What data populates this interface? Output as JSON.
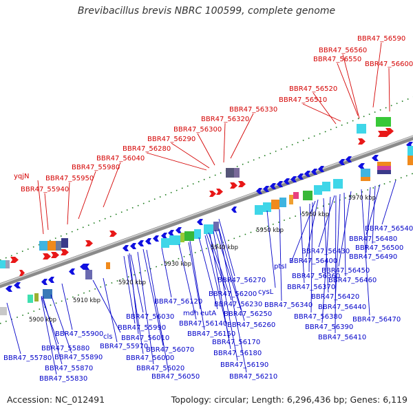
{
  "title": "Brevibacillus brevis NBRC 100599, complete genome",
  "footer": {
    "accession": "Accession: NC_012491",
    "summary": "Topology: circular; Length: 6,296,436 bp; Genes: 6,119"
  },
  "colors": {
    "top_strand_label": "#d40000",
    "bottom_strand_label": "#0000c8",
    "backbone": "#999999",
    "tick": "#1a7a1a"
  },
  "scale_ticks": [
    "5900 kbp",
    "5910 kbp",
    "5920 kbp",
    "5930 kbp",
    "5940 kbp",
    "5950 kbp",
    "5960 kbp",
    "5970 kbp"
  ],
  "top_labels": [
    "BBR47_56590",
    "BBR47_56560",
    "BBR47_56550",
    "BBR47_56600",
    "BBR47_56520",
    "BBR47_56510",
    "BBR47_56330",
    "BBR47_56320",
    "BBR47_56300",
    "BBR47_56290",
    "BBR47_56280",
    "BBR47_56040",
    "BBR47_55980",
    "yqjN",
    "BBR47_55950",
    "BBR47_55940"
  ],
  "bottom_labels": [
    "BBR47_56540",
    "BBR47_56480",
    "BBR47_56500",
    "BBR47_56490",
    "BBR47_56430",
    "ptsI",
    "BBR47_56400",
    "BBR47_56450",
    "BBR47_56360",
    "BBR47_56460",
    "BBR47_56370",
    "cysL",
    "BBR47_56270",
    "BBR47_56420",
    "BBR47_56340",
    "BBR47_56440",
    "BBR47_56470",
    "BBR47_56380",
    "BBR47_56390",
    "BBR47_56410",
    "BBR47_56200",
    "BBR47_56120",
    "BBR47_56230",
    "mdh",
    "eutA",
    "BBR47_56250",
    "BBR47_56030",
    "BBR47_56140",
    "BBR47_56260",
    "BBR47_55990",
    "BBR47_56150",
    "BBR47_55900",
    "cls",
    "BBR47_56010",
    "BBR47_56170",
    "BBR47_55880",
    "BBR47_55970",
    "BBR47_55780",
    "BBR47_56070",
    "BBR47_56180",
    "BBR47_55890",
    "BBR47_56000",
    "BBR47_56190",
    "BBR47_55870",
    "BBR47_56020",
    "BBR47_56210",
    "BBR47_55830",
    "BBR47_56050"
  ]
}
